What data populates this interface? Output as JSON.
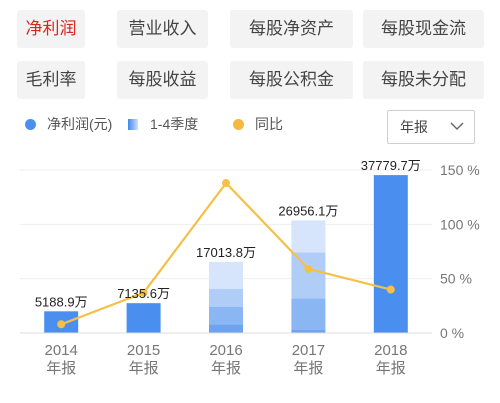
{
  "tabs": [
    {
      "label": "净利润",
      "active": true
    },
    {
      "label": "营业收入",
      "active": false
    },
    {
      "label": "每股净资产",
      "active": false
    },
    {
      "label": "每股现金流",
      "active": false
    },
    {
      "label": "毛利率",
      "active": false
    },
    {
      "label": "每股收益",
      "active": false
    },
    {
      "label": "每股公积金",
      "active": false
    },
    {
      "label": "每股未分配",
      "active": false
    }
  ],
  "legend": [
    {
      "label": "净利润(元)",
      "color": "#4a8ff0",
      "marker": "dot"
    },
    {
      "label": "1-4季度",
      "color": "#7fb0f4",
      "marker": "gradient-square"
    },
    {
      "label": "同比",
      "color": "#f5b940",
      "marker": "dot"
    }
  ],
  "period_select": {
    "value": "年报",
    "icon": "chevron-down-icon"
  },
  "colors": {
    "bar_full": "#4a8ff0",
    "bar_light": "#d6e5fb",
    "bar_mid": "#b0cdf7",
    "bar_mid2": "#8bb6f4",
    "bar_dark": "#6ea3f0",
    "line": "#f5c045",
    "grid": "#eeeeee",
    "active_tab": "#d7261f"
  },
  "chart_data": {
    "type": "bar",
    "categories": [
      "2014\n年报",
      "2015\n年报",
      "2016\n年报",
      "2017\n年报",
      "2018\n年报"
    ],
    "series": [
      {
        "name": "净利润(元)",
        "values": [
          5188.9,
          7135.6,
          17013.8,
          26956.1,
          37779.7
        ]
      },
      {
        "name": "同比",
        "values": [
          8,
          37,
          138,
          59,
          40
        ],
        "axis": "right",
        "type": "line"
      }
    ],
    "data_labels": [
      "5188.9万",
      "7135.6万",
      "17013.8万",
      "26956.1万",
      "37779.7万"
    ],
    "quarter_breakdown": [
      null,
      null,
      [
        2100,
        4200,
        4300,
        6413.8
      ],
      [
        800,
        7500,
        11000,
        7656.1
      ],
      null
    ],
    "right_axis": {
      "ticks": [
        "0 %",
        "50 %",
        "100 %",
        "150 %"
      ],
      "range": [
        0,
        150
      ]
    },
    "ylim": [
      0,
      39000
    ],
    "grid": true
  }
}
